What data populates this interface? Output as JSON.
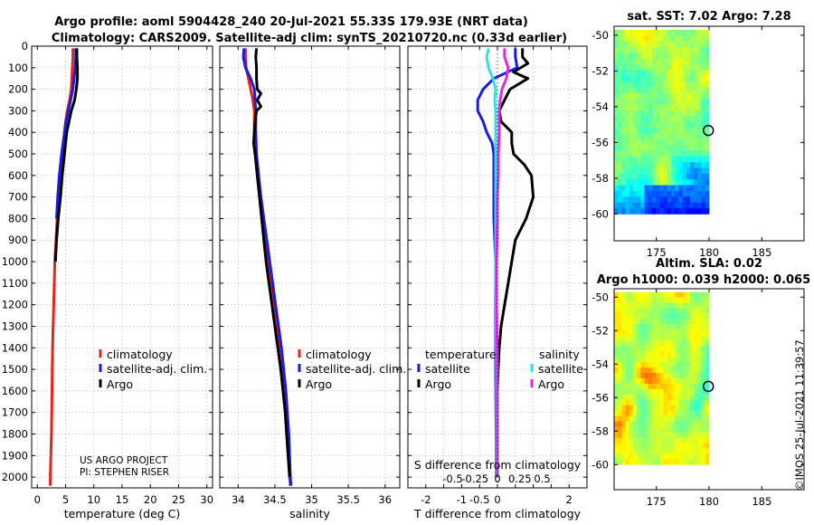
{
  "title_line1": "Argo profile: aoml 5904428_240 20-Jul-2021 55.33S 179.93E (NRT data)",
  "title_line2": "Climatology: CARS2009. Satellite-adj clim: synTS_20210720.nc (0.33d earlier)",
  "project_line1": "US ARGO PROJECT",
  "project_line2": "PI: STEPHEN RISER",
  "credit": "©IMOS 25-Jul-2021 11:39:57",
  "colors": {
    "climatology": "#e8221a",
    "satellite": "#1a1ae6",
    "argo": "#000000",
    "sat_salinity": "#33e0e0",
    "argo_salinity": "#e02ae0"
  },
  "chart_data": [
    {
      "id": "temperature",
      "type": "line",
      "xlabel": "temperature (deg C)",
      "ylim": [
        0,
        2050
      ],
      "xlim": [
        -1,
        31
      ],
      "yticks": [
        0,
        100,
        200,
        300,
        400,
        500,
        600,
        700,
        800,
        900,
        1000,
        1100,
        1200,
        1300,
        1400,
        1500,
        1600,
        1700,
        1800,
        1900,
        2000
      ],
      "xticks": [
        0,
        5,
        10,
        15,
        20,
        25,
        30
      ],
      "legend": [
        "climatology",
        "satellite-adj. clim.",
        "Argo"
      ],
      "series": [
        {
          "name": "climatology",
          "depth": [
            10,
            50,
            100,
            150,
            200,
            250,
            300,
            350,
            400,
            500,
            600,
            700,
            800,
            900,
            1000,
            1200,
            1400,
            1600,
            1800,
            2000,
            2040
          ],
          "values": [
            6.3,
            6.3,
            6.2,
            6.1,
            6.0,
            5.7,
            5.3,
            5.0,
            4.8,
            4.4,
            4.0,
            3.7,
            3.5,
            3.3,
            3.1,
            2.9,
            2.7,
            2.6,
            2.5,
            2.3,
            2.3
          ]
        },
        {
          "name": "satellite-adj. clim.",
          "depth": [
            10,
            50,
            100,
            150,
            200,
            250,
            300,
            350,
            400,
            500,
            600,
            700,
            800
          ],
          "values": [
            6.8,
            6.8,
            6.7,
            6.5,
            6.3,
            5.9,
            5.5,
            5.1,
            4.8,
            4.3,
            3.9,
            3.6,
            3.4
          ]
        },
        {
          "name": "Argo",
          "depth": [
            10,
            50,
            100,
            150,
            200,
            250,
            300,
            350,
            400,
            500,
            600,
            700,
            800,
            900,
            1000
          ],
          "values": [
            7.0,
            7.0,
            7.1,
            7.1,
            6.9,
            6.6,
            6.0,
            5.6,
            5.2,
            4.8,
            4.4,
            4.1,
            3.7,
            3.4,
            3.2
          ]
        }
      ]
    },
    {
      "id": "salinity",
      "type": "line",
      "xlabel": "salinity",
      "ylim": [
        0,
        2050
      ],
      "xlim": [
        33.75,
        36.2
      ],
      "xticks": [
        34,
        34.5,
        35,
        35.5,
        36
      ],
      "legend": [
        "climatology",
        "satellite-adj. clim.",
        "Argo"
      ],
      "series": [
        {
          "name": "climatology",
          "depth": [
            10,
            50,
            100,
            150,
            200,
            250,
            300,
            400,
            500,
            600,
            700,
            800,
            900,
            1000,
            1100,
            1200,
            1300,
            1400,
            1500,
            1600,
            1700,
            1800,
            1900,
            2000,
            2040
          ],
          "values": [
            34.1,
            34.1,
            34.11,
            34.14,
            34.17,
            34.2,
            34.22,
            34.22,
            34.24,
            34.27,
            34.3,
            34.33,
            34.36,
            34.4,
            34.44,
            34.48,
            34.52,
            34.56,
            34.59,
            34.62,
            34.65,
            34.67,
            34.69,
            34.7,
            34.71
          ]
        },
        {
          "name": "satellite-adj. clim.",
          "depth": [
            10,
            50,
            100,
            150,
            200,
            250,
            300,
            400,
            500,
            600,
            700,
            800,
            900,
            1000,
            1100,
            1200,
            1300,
            1400,
            1500,
            1600,
            1700,
            1800,
            1900,
            2000,
            2040
          ],
          "values": [
            34.08,
            34.07,
            34.1,
            34.17,
            34.22,
            34.23,
            34.24,
            34.24,
            34.25,
            34.28,
            34.31,
            34.35,
            34.39,
            34.43,
            34.47,
            34.51,
            34.55,
            34.59,
            34.62,
            34.65,
            34.67,
            34.69,
            34.7,
            34.71,
            34.72
          ]
        },
        {
          "name": "Argo",
          "depth": [
            10,
            50,
            100,
            150,
            200,
            220,
            250,
            280,
            300,
            350,
            400,
            450,
            500,
            600,
            700,
            800,
            900,
            1000,
            1100,
            1200,
            1300,
            1400,
            1500,
            1600,
            1700,
            1800,
            1900,
            2000
          ],
          "values": [
            34.25,
            34.24,
            34.25,
            34.25,
            34.26,
            34.31,
            34.26,
            34.31,
            34.25,
            34.23,
            34.22,
            34.21,
            34.23,
            34.26,
            34.29,
            34.32,
            34.35,
            34.38,
            34.42,
            34.46,
            34.5,
            34.54,
            34.58,
            34.61,
            34.64,
            34.66,
            34.68,
            34.7
          ]
        }
      ]
    },
    {
      "id": "differences",
      "type": "line",
      "xlabel": "T difference from climatology",
      "xlabel_top": "S difference from climatology",
      "ylim": [
        0,
        2050
      ],
      "xlim": [
        -2.5,
        2.5
      ],
      "xticks": [
        -2,
        -1.5,
        -1,
        -0.5,
        0,
        0.5,
        1,
        1.5,
        2
      ],
      "xtick_labels": [
        "-2",
        "-1.5",
        "-1",
        "-0.5",
        "0",
        "0.5",
        "1",
        "1.5",
        "2"
      ],
      "top_xticks": [
        -0.5,
        -0.25,
        0,
        0.25,
        0.5
      ],
      "top_xtick_labels": [
        "-0.5",
        "-0.25",
        "0",
        "0.25",
        "0.5"
      ],
      "legend_temperature_title": "temperature",
      "legend_salinity_title": "salinity",
      "legend_temperature": [
        "satellite",
        "Argo"
      ],
      "legend_salinity": [
        "satellite",
        "Argo"
      ],
      "series": [
        {
          "name": "T satellite",
          "depth": [
            10,
            50,
            100,
            150,
            200,
            250,
            300,
            350,
            400,
            450,
            500,
            600,
            700,
            800,
            1000,
            1200,
            1500,
            2000
          ],
          "values": [
            0.5,
            0.5,
            0.55,
            -0.1,
            -0.4,
            -0.55,
            -0.55,
            -0.4,
            -0.3,
            -0.15,
            -0.1,
            -0.1,
            -0.1,
            -0.1,
            -0.05,
            -0.05,
            -0.05,
            -0.03
          ]
        },
        {
          "name": "T Argo",
          "depth": [
            10,
            50,
            80,
            120,
            150,
            200,
            250,
            300,
            350,
            400,
            450,
            500,
            550,
            600,
            700,
            800,
            900,
            1000,
            1100,
            1200,
            1300,
            1400,
            1500,
            1600,
            1700,
            1800,
            1900,
            2000
          ],
          "values": [
            0.7,
            0.7,
            0.85,
            0.45,
            0.85,
            0.35,
            0.2,
            0.05,
            0.1,
            0.4,
            0.4,
            0.45,
            0.75,
            0.95,
            1.0,
            0.8,
            0.5,
            0.4,
            0.3,
            0.2,
            0.1,
            0.05,
            0.02,
            0.0,
            0.0,
            -0.02,
            -0.03,
            -0.03
          ]
        },
        {
          "name": "S satellite",
          "depth": [
            10,
            50,
            100,
            150,
            200,
            250,
            300,
            400,
            600,
            800,
            1000,
            1500,
            2000
          ],
          "values": [
            -0.1,
            -0.12,
            -0.1,
            -0.05,
            -0.02,
            -0.03,
            -0.02,
            -0.02,
            -0.02,
            -0.02,
            -0.02,
            -0.01,
            -0.01
          ]
        },
        {
          "name": "S Argo",
          "depth": [
            10,
            50,
            100,
            150,
            200,
            250,
            300,
            400,
            500,
            600,
            700,
            800,
            1000,
            1200,
            1500,
            2000
          ],
          "values": [
            0.08,
            0.08,
            0.12,
            0.1,
            0.05,
            0.03,
            0.02,
            0.02,
            0.01,
            0.01,
            0.0,
            0.0,
            -0.01,
            -0.01,
            0.0,
            0.0
          ]
        }
      ]
    },
    {
      "id": "sst_map",
      "type": "heatmap",
      "title": "sat. SST: 7.02 Argo: 7.28",
      "xticks": [
        175,
        180,
        185
      ],
      "yticks": [
        -50,
        -52,
        -54,
        -56,
        -58,
        -60
      ],
      "xlim": [
        171,
        189
      ],
      "ylim": [
        -61.5,
        -49.5
      ],
      "data_extent_x": [
        171,
        180
      ],
      "data_extent_y": [
        -60,
        -49.7
      ],
      "marker": [
        179.93,
        -55.33
      ]
    },
    {
      "id": "sla_map",
      "type": "heatmap",
      "title_line1": "Altim. SLA: 0.02",
      "title_line2": "Argo h1000: 0.039 h2000: 0.065",
      "xticks": [
        175,
        180,
        185
      ],
      "yticks": [
        -50,
        -52,
        -54,
        -56,
        -58,
        -60
      ],
      "xlim": [
        171,
        189
      ],
      "ylim": [
        -61.5,
        -49.5
      ],
      "data_extent_x": [
        171,
        180
      ],
      "data_extent_y": [
        -60,
        -49.7
      ],
      "marker": [
        179.93,
        -55.33
      ]
    }
  ]
}
